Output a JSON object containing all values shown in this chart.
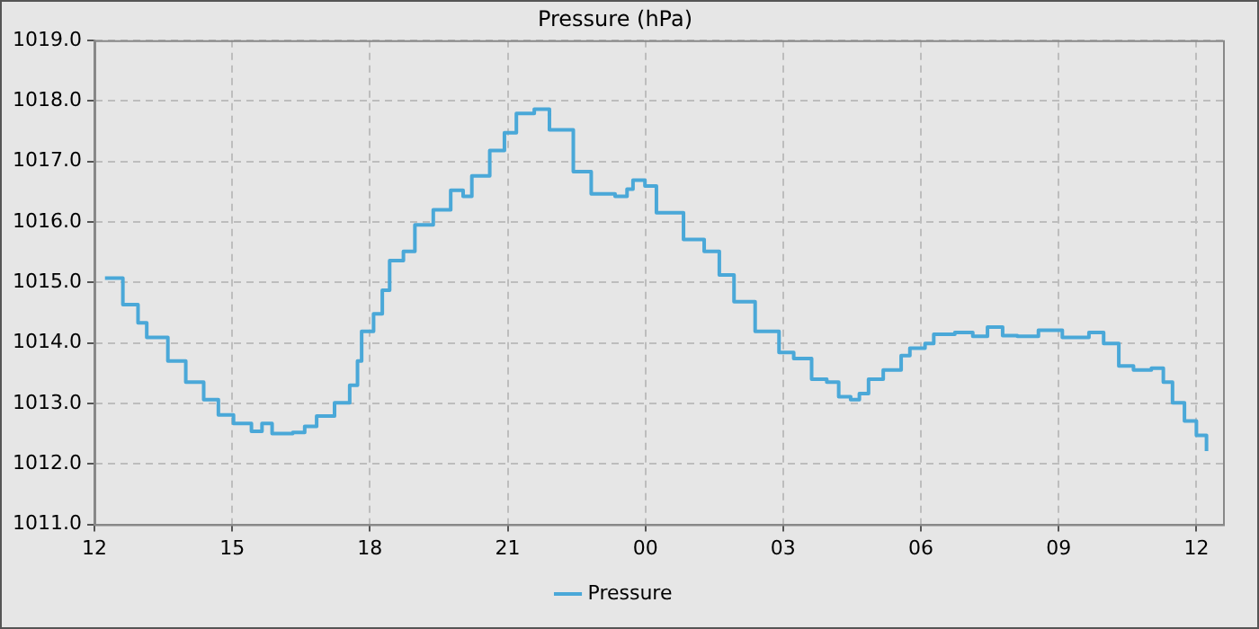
{
  "chart_data": {
    "type": "step",
    "title": "Pressure (hPa)",
    "x": [
      12.23,
      12.62,
      12.95,
      13.14,
      13.6,
      13.99,
      14.38,
      14.7,
      15.03,
      15.42,
      15.65,
      15.87,
      16.32,
      16.58,
      16.84,
      17.23,
      17.56,
      17.73,
      17.82,
      18.08,
      18.27,
      18.43,
      18.73,
      18.98,
      19.38,
      19.76,
      20.03,
      20.22,
      20.61,
      20.93,
      21.19,
      21.58,
      21.91,
      22.17,
      22.43,
      22.82,
      23.34,
      23.6,
      23.73,
      23.99,
      24.24,
      24.51,
      24.83,
      25.28,
      25.61,
      25.93,
      26.39,
      26.91,
      27.23,
      27.62,
      27.95,
      28.21,
      28.47,
      28.66,
      28.86,
      29.18,
      29.57,
      29.76,
      30.09,
      30.28,
      30.74,
      31.13,
      31.45,
      31.78,
      32.1,
      32.56,
      33.08,
      33.66,
      33.98,
      34.31,
      34.63,
      35.02,
      35.28,
      35.48,
      35.74,
      36.0,
      36.22
    ],
    "series": [
      {
        "name": "Pressure",
        "color": "#4aa8d8",
        "values": [
          1015.07,
          1014.63,
          1014.33,
          1014.09,
          1013.7,
          1013.35,
          1013.06,
          1012.81,
          1012.67,
          1012.54,
          1012.67,
          1012.5,
          1012.52,
          1012.62,
          1012.79,
          1013.01,
          1013.3,
          1013.7,
          1014.19,
          1014.48,
          1014.87,
          1015.36,
          1015.51,
          1015.95,
          1016.2,
          1016.52,
          1016.42,
          1016.76,
          1017.18,
          1017.47,
          1017.79,
          1017.86,
          1017.52,
          1017.52,
          1016.83,
          1016.46,
          1016.42,
          1016.54,
          1016.69,
          1016.59,
          1016.15,
          1016.15,
          1015.71,
          1015.51,
          1015.12,
          1014.68,
          1014.19,
          1013.84,
          1013.74,
          1013.4,
          1013.35,
          1013.11,
          1013.06,
          1013.16,
          1013.4,
          1013.55,
          1013.79,
          1013.91,
          1013.99,
          1014.14,
          1014.17,
          1014.11,
          1014.26,
          1014.12,
          1014.11,
          1014.21,
          1014.09,
          1014.17,
          1013.99,
          1013.62,
          1013.55,
          1013.58,
          1013.35,
          1013.01,
          1012.71,
          1012.47,
          1012.21
        ]
      }
    ],
    "xlim": [
      12,
      36.58
    ],
    "xticks": [
      {
        "value": 12,
        "label": "12"
      },
      {
        "value": 15,
        "label": "15"
      },
      {
        "value": 18,
        "label": "18"
      },
      {
        "value": 21,
        "label": "21"
      },
      {
        "value": 24,
        "label": "00"
      },
      {
        "value": 27,
        "label": "03"
      },
      {
        "value": 30,
        "label": "06"
      },
      {
        "value": 33,
        "label": "09"
      },
      {
        "value": 36,
        "label": "12"
      }
    ],
    "ylim": [
      1011,
      1019
    ],
    "yticks": [
      {
        "value": 1011,
        "label": "1011.0"
      },
      {
        "value": 1012,
        "label": "1012.0"
      },
      {
        "value": 1013,
        "label": "1013.0"
      },
      {
        "value": 1014,
        "label": "1014.0"
      },
      {
        "value": 1015,
        "label": "1015.0"
      },
      {
        "value": 1016,
        "label": "1016.0"
      },
      {
        "value": 1017,
        "label": "1017.0"
      },
      {
        "value": 1018,
        "label": "1018.0"
      },
      {
        "value": 1019,
        "label": "1019.0"
      }
    ],
    "grid": true,
    "legend": "bottom",
    "marker": "none",
    "line_style": "solid"
  }
}
